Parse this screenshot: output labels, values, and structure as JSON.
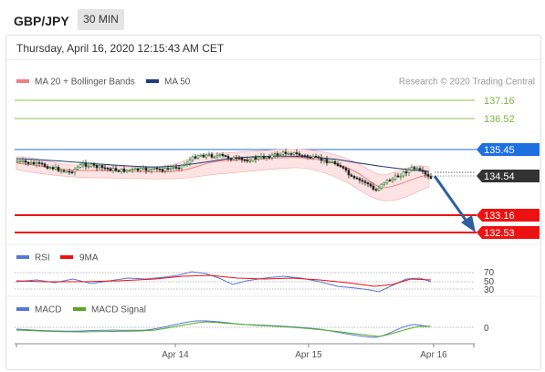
{
  "header": {
    "pair": "GBP/JPY",
    "timeframe": "30 MIN",
    "datetime": "Thursday, April 16, 2020 12:15:43 AM CET"
  },
  "main_chart": {
    "legend": [
      {
        "label": "MA 20 + Bollinger Bands",
        "color": "#f08080"
      },
      {
        "label": "MA 50",
        "color": "#1f3d7a"
      }
    ],
    "credit": "Research © 2020 Trading Central",
    "levels": [
      {
        "value": "137.16",
        "kind": "target",
        "color": "#7cb342"
      },
      {
        "value": "136.52",
        "kind": "target",
        "color": "#7cb342"
      },
      {
        "value": "135.45",
        "kind": "pivot",
        "color": "#1e6fe0"
      },
      {
        "value": "134.54",
        "kind": "last",
        "color": "#333333"
      },
      {
        "value": "133.16",
        "kind": "support",
        "color": "#ee1111"
      },
      {
        "value": "132.53",
        "kind": "support",
        "color": "#ee1111"
      }
    ]
  },
  "rsi_panel": {
    "legend": [
      {
        "label": "RSI",
        "color": "#5577dd"
      },
      {
        "label": "9MA",
        "color": "#ee1111"
      }
    ],
    "levels": [
      "70",
      "50",
      "30"
    ]
  },
  "macd_panel": {
    "legend": [
      {
        "label": "MACD",
        "color": "#5577dd"
      },
      {
        "label": "MACD Signal",
        "color": "#55aa22"
      }
    ],
    "level": "0"
  },
  "x_axis": {
    "ticks": [
      "Apr 14",
      "Apr 15",
      "Apr 16"
    ]
  },
  "colors": {
    "accent_arrow": "#2f5f9e",
    "bollinger_fill": "#fde3e3"
  }
}
